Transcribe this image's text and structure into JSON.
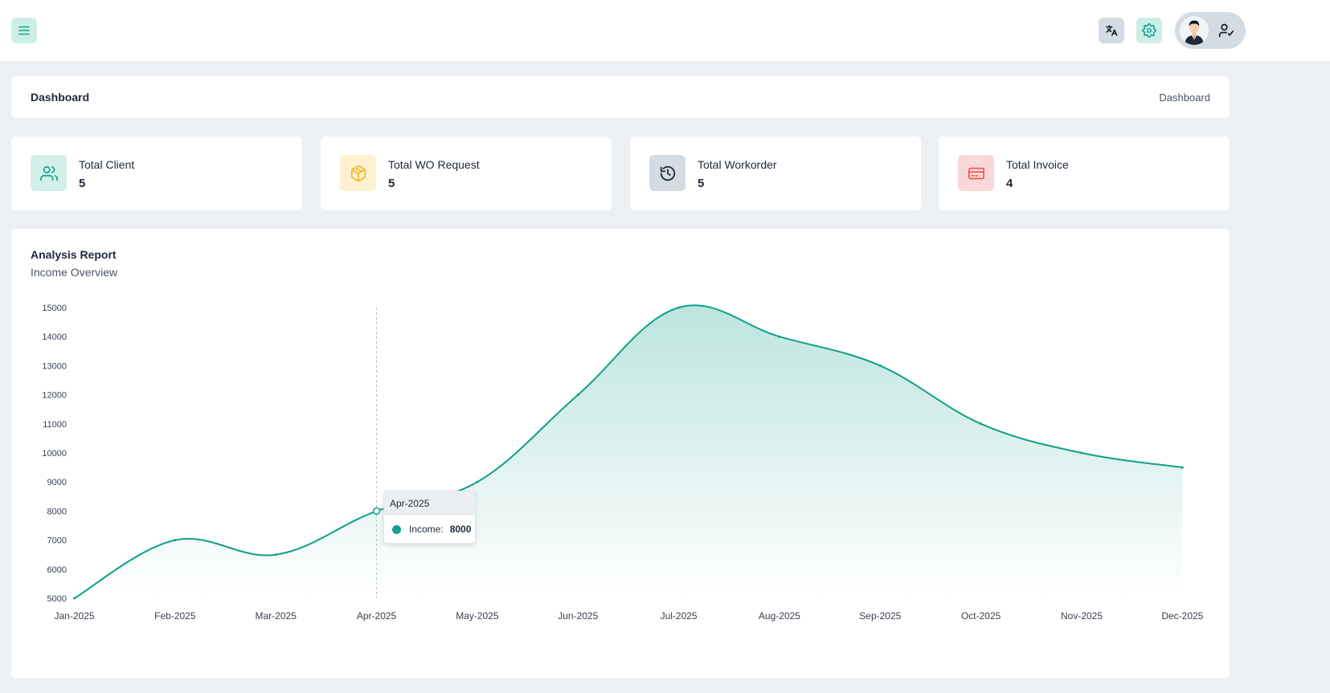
{
  "header": {
    "menu_icon": "menu-icon",
    "translate_icon": "translate-icon",
    "settings_icon": "gear-icon",
    "profile_icon": "user-check-icon"
  },
  "page": {
    "title": "Dashboard",
    "breadcrumb": "Dashboard"
  },
  "stats": [
    {
      "label": "Total Client",
      "value": "5",
      "icon": "users-icon",
      "bg": "#d3efe9",
      "fg": "#13a08a"
    },
    {
      "label": "Total WO Request",
      "value": "5",
      "icon": "package-icon",
      "bg": "#fdf1cf",
      "fg": "#f6b625"
    },
    {
      "label": "Total Workorder",
      "value": "5",
      "icon": "history-icon",
      "bg": "#d5dbe2",
      "fg": "#1f2937"
    },
    {
      "label": "Total Invoice",
      "value": "4",
      "icon": "credit-card-icon",
      "bg": "#fcd7d7",
      "fg": "#ef5350"
    }
  ],
  "chart_title": "Analysis Report",
  "chart_subtitle": "Income Overview",
  "tooltip": {
    "title": "Apr-2025",
    "series_label": "Income:",
    "value": "8000"
  },
  "colors": {
    "accent": "#11a08a",
    "background": "#ecf0f4"
  },
  "chart_data": {
    "type": "area",
    "title": "Analysis Report",
    "subtitle": "Income Overview",
    "categories": [
      "Jan-2025",
      "Feb-2025",
      "Mar-2025",
      "Apr-2025",
      "May-2025",
      "Jun-2025",
      "Jul-2025",
      "Aug-2025",
      "Sep-2025",
      "Oct-2025",
      "Nov-2025",
      "Dec-2025"
    ],
    "series": [
      {
        "name": "Income",
        "values": [
          5000,
          7000,
          6500,
          8000,
          9000,
          12000,
          15000,
          14000,
          13000,
          11000,
          10000,
          9500
        ]
      }
    ],
    "yticks": [
      5000,
      6000,
      7000,
      8000,
      9000,
      10000,
      11000,
      12000,
      13000,
      14000,
      15000
    ],
    "ylim": [
      5000,
      15000
    ],
    "highlighted_category": "Apr-2025"
  }
}
